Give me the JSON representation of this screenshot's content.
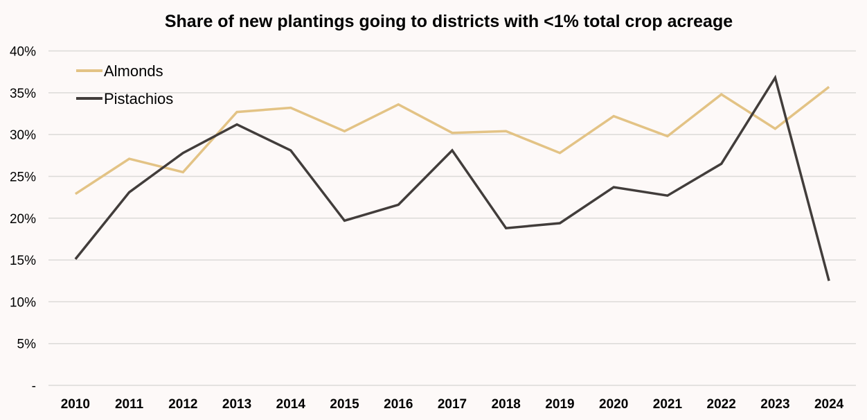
{
  "chart_data": {
    "type": "line",
    "title": "Share of new plantings going to districts with <1% total crop acreage",
    "xlabel": "",
    "ylabel": "",
    "x": [
      "2010",
      "2011",
      "2012",
      "2013",
      "2014",
      "2015",
      "2016",
      "2017",
      "2018",
      "2019",
      "2020",
      "2021",
      "2022",
      "2023",
      "2024"
    ],
    "ylim": [
      0,
      40
    ],
    "yticks": [
      0,
      5,
      10,
      15,
      20,
      25,
      30,
      35,
      40
    ],
    "ytick_labels": [
      "-",
      "5%",
      "10%",
      "15%",
      "20%",
      "25%",
      "30%",
      "35%",
      "40%"
    ],
    "grid": true,
    "legend": "top-left",
    "series": [
      {
        "name": "Almonds",
        "color": "#E3C385",
        "values": [
          22.9,
          27.1,
          25.5,
          32.7,
          33.2,
          30.4,
          33.6,
          30.2,
          30.4,
          27.8,
          32.2,
          29.8,
          34.8,
          30.7,
          35.7
        ]
      },
      {
        "name": "Pistachios",
        "color": "#423D3B",
        "values": [
          15.1,
          23.1,
          27.8,
          31.2,
          28.1,
          19.7,
          21.6,
          28.1,
          18.8,
          19.4,
          23.7,
          22.7,
          26.5,
          36.8,
          12.5
        ]
      }
    ]
  }
}
